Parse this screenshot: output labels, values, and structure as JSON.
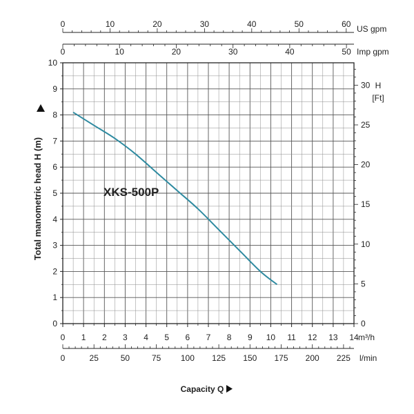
{
  "chart_data": {
    "type": "line",
    "title": "",
    "model_label": "XKS-500P",
    "xlabel": "Capacity Q",
    "ylabel": "Total manometric head H (m)",
    "x_unit": "m³/h",
    "y_unit": "",
    "xlim": [
      0,
      14
    ],
    "ylim": [
      0,
      10
    ],
    "x_ticks": [
      "0",
      "1",
      "2",
      "3",
      "4",
      "5",
      "6",
      "7",
      "8",
      "9",
      "10",
      "11",
      "12",
      "13",
      "14"
    ],
    "y_ticks": [
      "0",
      "1",
      "2",
      "3",
      "4",
      "5",
      "6",
      "7",
      "8",
      "9",
      "10"
    ],
    "grid": true,
    "series": [
      {
        "name": "XKS-500P",
        "x": [
          0.5,
          1.5,
          2.5,
          3.5,
          4.5,
          5.5,
          6.5,
          7.5,
          8.5,
          9.5,
          10.3
        ],
        "y": [
          8.1,
          7.6,
          7.1,
          6.5,
          5.8,
          5.1,
          4.4,
          3.6,
          2.8,
          2.0,
          1.5
        ]
      }
    ],
    "secondary_axes": {
      "us_gpm": {
        "unit": "US gpm",
        "ticks": [
          "0",
          "10",
          "20",
          "30",
          "40",
          "50",
          "60"
        ],
        "values": [
          0,
          10,
          20,
          30,
          40,
          50,
          60
        ]
      },
      "imp_gpm": {
        "unit": "Imp gpm",
        "ticks": [
          "0",
          "10",
          "20",
          "30",
          "40",
          "50"
        ],
        "values": [
          0,
          10,
          20,
          30,
          40,
          50
        ]
      },
      "l_min": {
        "unit": "l/min",
        "ticks": [
          "0",
          "25",
          "50",
          "75",
          "100",
          "125",
          "150",
          "175",
          "200",
          "225"
        ],
        "values": [
          0,
          25,
          50,
          75,
          100,
          125,
          150,
          175,
          200,
          225
        ]
      },
      "ft": {
        "unit_line1": "H",
        "unit_line2": "[Ft]",
        "ticks": [
          "0",
          "5",
          "10",
          "15",
          "20",
          "25",
          "30"
        ],
        "values": [
          0,
          5,
          10,
          15,
          20,
          25,
          30
        ]
      }
    },
    "colors": {
      "curve": "#2e8aa0",
      "grid": "#555555",
      "axis": "#222222"
    }
  }
}
